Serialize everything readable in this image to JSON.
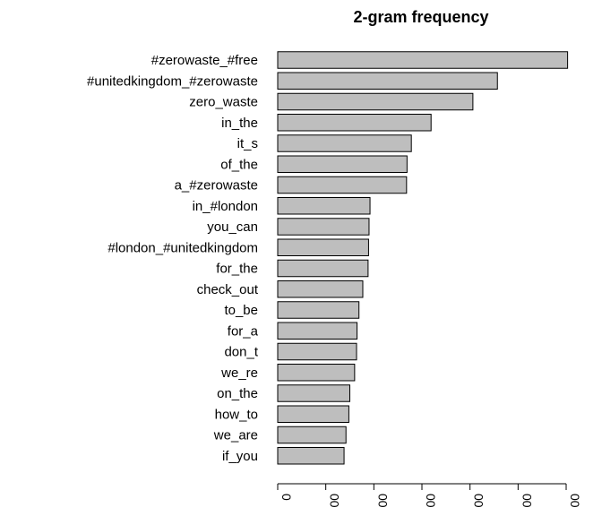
{
  "chart_data": {
    "type": "bar",
    "orientation": "horizontal",
    "title": "2-gram frequency",
    "xlabel": "",
    "ylabel": "",
    "categories": [
      "#zerowaste_#free",
      "#unitedkingdom_#zerowaste",
      "zero_waste",
      "in_the",
      "it_s",
      "of_the",
      "a_#zerowaste",
      "in_#london",
      "you_can",
      "#london_#unitedkingdom",
      "for_the",
      "check_out",
      "to_be",
      "for_a",
      "don_t",
      "we_re",
      "on_the",
      "how_to",
      "we_are",
      "if_you"
    ],
    "values": [
      603,
      457,
      406,
      319,
      278,
      269,
      268,
      192,
      190,
      189,
      188,
      177,
      169,
      165,
      164,
      160,
      150,
      148,
      142,
      138
    ],
    "xlim": [
      0,
      600
    ],
    "xticks": [
      0,
      100,
      200,
      300,
      400,
      500,
      600
    ],
    "xtick_labels": [
      "0",
      "00",
      "00",
      "00",
      "00",
      "00",
      "00"
    ],
    "bar_color": "#bebebe",
    "bar_edge_color": "#000000",
    "grid": false
  }
}
